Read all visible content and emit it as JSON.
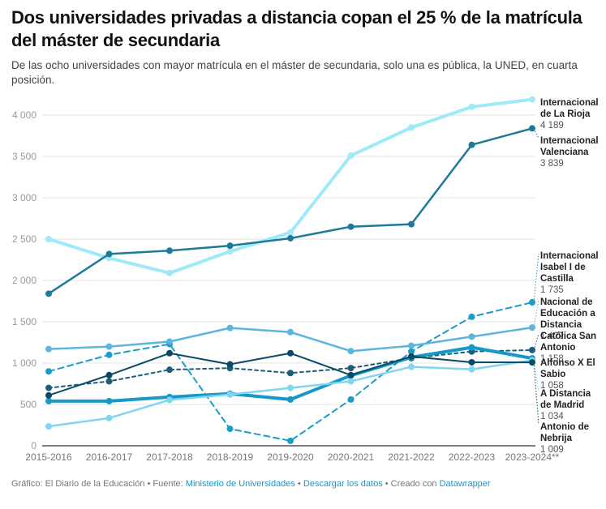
{
  "header": {
    "title": "Dos universidades privadas a distancia copan el 25 % de la matrícula del máster de secundaria",
    "subtitle": "De las ocho universidades con mayor matrícula en el máster de secundaria, solo una es pública, la UNED, en cuarta posición."
  },
  "footer": {
    "prefix": "Gráfico: El Diario de la Educación • Fuente: ",
    "source_link": "Ministerio de Universidades",
    "sep1": " • ",
    "download_link": "Descargar los datos",
    "sep2": " • Creado con ",
    "tool_link": "Datawrapper"
  },
  "chart_data": {
    "type": "line",
    "title": "Dos universidades privadas a distancia copan el 25 % de la matrícula del máster de secundaria",
    "xlabel": "",
    "ylabel": "",
    "ylim": [
      0,
      4200
    ],
    "yticks": [
      0,
      500,
      1000,
      1500,
      2000,
      2500,
      3000,
      3500,
      4000
    ],
    "ytick_labels": [
      "0",
      "500",
      "1 000",
      "1 500",
      "2 000",
      "2 500",
      "3 000",
      "3 500",
      "4 000"
    ],
    "grid": true,
    "legend": "direct-labels-right",
    "categories": [
      "2015-2016",
      "2016-2017",
      "2017-2018",
      "2018-2019",
      "2019-2020",
      "2020-2021",
      "2021-2022",
      "2022-2023",
      "2023-2024**"
    ],
    "series": [
      {
        "name": "Internacional de La Rioja",
        "label_lines": [
          "Internacional",
          "de La Rioja"
        ],
        "end_label": "4 189",
        "color": "#9eeaf9",
        "style": "solid-thick",
        "values": [
          2500,
          2270,
          2090,
          2350,
          2580,
          3510,
          3850,
          4100,
          4189
        ]
      },
      {
        "name": "Internacional Valenciana",
        "label_lines": [
          "Internacional",
          "Valenciana"
        ],
        "end_label": "3 839",
        "color": "#1f7a9a",
        "style": "solid",
        "values": [
          1840,
          2320,
          2360,
          2420,
          2510,
          2650,
          2680,
          3640,
          3839
        ]
      },
      {
        "name": "Internacional Isabel I de Castilla",
        "label_lines": [
          "Internacional",
          "Isabel I de",
          "Castilla"
        ],
        "end_label": "1 735",
        "color": "#1a9dc9",
        "style": "dashed",
        "values": [
          900,
          1100,
          1230,
          205,
          60,
          560,
          1140,
          1560,
          1735
        ]
      },
      {
        "name": "Nacional de Educación a Distancia",
        "label_lines": [
          "Nacional de",
          "Educación a",
          "Distancia"
        ],
        "end_label": "1 4??",
        "color": "#5cb5dc",
        "style": "solid",
        "values": [
          1170,
          1200,
          1260,
          1425,
          1375,
          1145,
          1210,
          1320,
          1430
        ]
      },
      {
        "name": "Católica San Antonio",
        "label_lines": [
          "Católica San",
          "Antonio"
        ],
        "end_label": "1 158",
        "color": "#1c5f7a",
        "style": "dotted",
        "values": [
          700,
          780,
          920,
          940,
          880,
          940,
          1060,
          1140,
          1158
        ]
      },
      {
        "name": "Alfonso X El Sabio",
        "label_lines": [
          "Alfonso X El",
          "Sabio"
        ],
        "end_label": "1 058",
        "color": "#1699c6",
        "style": "solid-thick",
        "values": [
          540,
          540,
          590,
          630,
          560,
          850,
          1070,
          1190,
          1058
        ]
      },
      {
        "name": "A Distancia de Madrid",
        "label_lines": [
          "A Distancia",
          "de Madrid"
        ],
        "end_label": "1 034",
        "color": "#7fd6ee",
        "style": "solid",
        "values": [
          235,
          335,
          555,
          620,
          700,
          780,
          955,
          925,
          1034
        ]
      },
      {
        "name": "Antonio de Nebrija",
        "label_lines": [
          "Antonio de",
          "Nebrija"
        ],
        "end_label": "1 009",
        "color": "#0b4a66",
        "style": "solid-thin",
        "values": [
          610,
          855,
          1120,
          985,
          1120,
          855,
          1080,
          1010,
          1009
        ]
      }
    ]
  }
}
